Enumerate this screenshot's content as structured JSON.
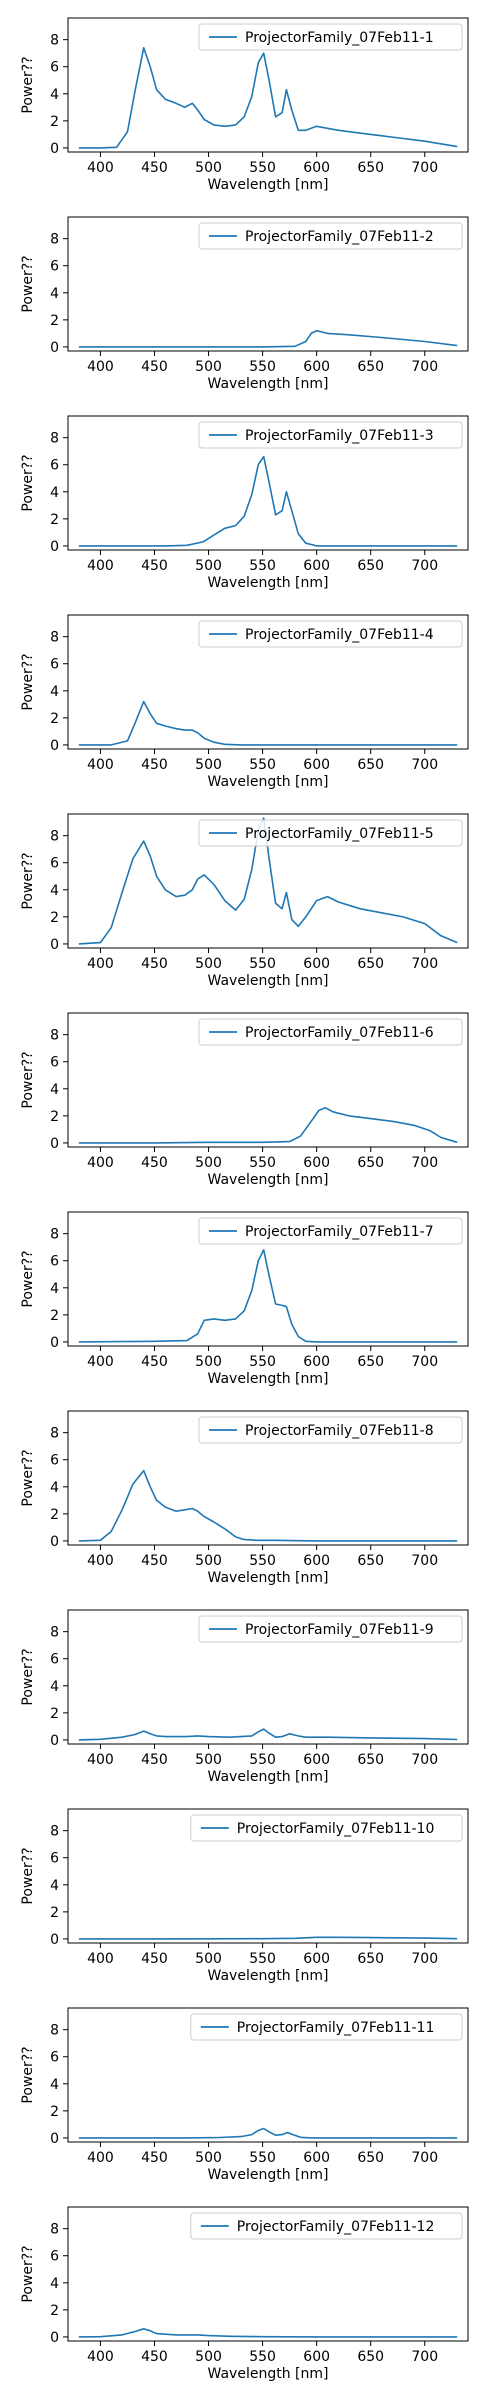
{
  "chart_data": [
    {
      "type": "line",
      "xlabel": "Wavelength [nm]",
      "ylabel": "Power??",
      "xticks": [
        400,
        450,
        500,
        550,
        600,
        650,
        700
      ],
      "yticks": [
        0,
        2,
        4,
        6,
        8
      ],
      "xlim": [
        370,
        740
      ],
      "ylim": [
        -0.3,
        9.6
      ],
      "legend_position": "top-right",
      "color": "#1f77b4",
      "series": [
        {
          "name": "ProjectorFamily_07Feb11-1",
          "x": [
            380,
            400,
            415,
            425,
            432,
            440,
            446,
            452,
            460,
            470,
            478,
            485,
            490,
            496,
            505,
            515,
            525,
            533,
            540,
            546,
            551,
            556,
            562,
            568,
            572,
            577,
            583,
            590,
            600,
            620,
            650,
            680,
            700,
            730
          ],
          "y": [
            0,
            0,
            0.05,
            1.2,
            4.2,
            7.4,
            6.0,
            4.3,
            3.6,
            3.3,
            3.0,
            3.3,
            2.8,
            2.1,
            1.7,
            1.6,
            1.7,
            2.3,
            3.8,
            6.3,
            7.0,
            5.0,
            2.3,
            2.6,
            4.3,
            2.8,
            1.3,
            1.3,
            1.6,
            1.3,
            1.0,
            0.7,
            0.5,
            0.1
          ]
        }
      ]
    },
    {
      "type": "line",
      "xlabel": "Wavelength [nm]",
      "ylabel": "Power??",
      "xticks": [
        400,
        450,
        500,
        550,
        600,
        650,
        700
      ],
      "yticks": [
        0,
        2,
        4,
        6,
        8
      ],
      "xlim": [
        370,
        740
      ],
      "ylim": [
        -0.3,
        9.6
      ],
      "legend_position": "top-right",
      "color": "#1f77b4",
      "series": [
        {
          "name": "ProjectorFamily_07Feb11-2",
          "x": [
            380,
            450,
            550,
            580,
            590,
            595,
            600,
            610,
            630,
            660,
            700,
            730
          ],
          "y": [
            0,
            0,
            0,
            0.05,
            0.4,
            1.0,
            1.2,
            1.0,
            0.9,
            0.7,
            0.4,
            0.1
          ]
        }
      ]
    },
    {
      "type": "line",
      "xlabel": "Wavelength [nm]",
      "ylabel": "Power??",
      "xticks": [
        400,
        450,
        500,
        550,
        600,
        650,
        700
      ],
      "yticks": [
        0,
        2,
        4,
        6,
        8
      ],
      "xlim": [
        370,
        740
      ],
      "ylim": [
        -0.3,
        9.6
      ],
      "legend_position": "top-right",
      "color": "#1f77b4",
      "series": [
        {
          "name": "ProjectorFamily_07Feb11-3",
          "x": [
            380,
            460,
            480,
            495,
            505,
            515,
            525,
            533,
            540,
            546,
            551,
            556,
            562,
            568,
            572,
            577,
            583,
            590,
            600,
            620,
            730
          ],
          "y": [
            0,
            0,
            0.05,
            0.3,
            0.8,
            1.3,
            1.5,
            2.2,
            3.8,
            6.0,
            6.6,
            4.7,
            2.3,
            2.6,
            4.0,
            2.6,
            0.9,
            0.2,
            0,
            0,
            0
          ]
        }
      ]
    },
    {
      "type": "line",
      "xlabel": "Wavelength [nm]",
      "ylabel": "Power??",
      "xticks": [
        400,
        450,
        500,
        550,
        600,
        650,
        700
      ],
      "yticks": [
        0,
        2,
        4,
        6,
        8
      ],
      "xlim": [
        370,
        740
      ],
      "ylim": [
        -0.3,
        9.6
      ],
      "legend_position": "top-right",
      "color": "#1f77b4",
      "series": [
        {
          "name": "ProjectorFamily_07Feb11-4",
          "x": [
            380,
            410,
            425,
            432,
            440,
            446,
            452,
            460,
            470,
            478,
            485,
            490,
            496,
            505,
            515,
            530,
            600,
            730
          ],
          "y": [
            0,
            0,
            0.3,
            1.6,
            3.2,
            2.3,
            1.6,
            1.4,
            1.2,
            1.1,
            1.1,
            0.9,
            0.5,
            0.2,
            0.05,
            0,
            0,
            0
          ]
        }
      ]
    },
    {
      "type": "line",
      "xlabel": "Wavelength [nm]",
      "ylabel": "Power??",
      "xticks": [
        400,
        450,
        500,
        550,
        600,
        650,
        700
      ],
      "yticks": [
        0,
        2,
        4,
        6,
        8
      ],
      "xlim": [
        370,
        740
      ],
      "ylim": [
        -0.3,
        9.6
      ],
      "legend_position": "top-right",
      "color": "#1f77b4",
      "series": [
        {
          "name": "ProjectorFamily_07Feb11-5",
          "x": [
            380,
            400,
            410,
            420,
            430,
            440,
            446,
            452,
            460,
            470,
            478,
            485,
            490,
            496,
            505,
            515,
            525,
            533,
            540,
            546,
            551,
            556,
            562,
            568,
            572,
            577,
            583,
            590,
            600,
            610,
            620,
            640,
            660,
            680,
            700,
            715,
            730
          ],
          "y": [
            0,
            0.1,
            1.2,
            3.8,
            6.3,
            7.6,
            6.5,
            5.0,
            4.0,
            3.5,
            3.6,
            4.0,
            4.8,
            5.1,
            4.4,
            3.2,
            2.5,
            3.3,
            5.5,
            8.4,
            9.3,
            6.3,
            3.0,
            2.6,
            3.8,
            1.8,
            1.3,
            2.0,
            3.2,
            3.5,
            3.1,
            2.6,
            2.3,
            2.0,
            1.5,
            0.6,
            0.1
          ]
        }
      ]
    },
    {
      "type": "line",
      "xlabel": "Wavelength [nm]",
      "ylabel": "Power??",
      "xticks": [
        400,
        450,
        500,
        550,
        600,
        650,
        700
      ],
      "yticks": [
        0,
        2,
        4,
        6,
        8
      ],
      "xlim": [
        370,
        740
      ],
      "ylim": [
        -0.3,
        9.6
      ],
      "legend_position": "top-right",
      "color": "#1f77b4",
      "series": [
        {
          "name": "ProjectorFamily_07Feb11-6",
          "x": [
            380,
            450,
            500,
            550,
            575,
            585,
            595,
            602,
            608,
            615,
            630,
            650,
            670,
            690,
            705,
            715,
            730
          ],
          "y": [
            0,
            0,
            0.05,
            0.05,
            0.1,
            0.5,
            1.6,
            2.4,
            2.6,
            2.3,
            2.0,
            1.8,
            1.6,
            1.3,
            0.9,
            0.4,
            0.05
          ]
        }
      ]
    },
    {
      "type": "line",
      "xlabel": "Wavelength [nm]",
      "ylabel": "Power??",
      "xticks": [
        400,
        450,
        500,
        550,
        600,
        650,
        700
      ],
      "yticks": [
        0,
        2,
        4,
        6,
        8
      ],
      "xlim": [
        370,
        740
      ],
      "ylim": [
        -0.3,
        9.6
      ],
      "legend_position": "top-right",
      "color": "#1f77b4",
      "series": [
        {
          "name": "ProjectorFamily_07Feb11-7",
          "x": [
            380,
            450,
            480,
            490,
            496,
            505,
            515,
            525,
            533,
            540,
            546,
            551,
            556,
            562,
            568,
            572,
            577,
            583,
            590,
            600,
            730
          ],
          "y": [
            0,
            0.05,
            0.1,
            0.6,
            1.6,
            1.7,
            1.6,
            1.7,
            2.3,
            3.8,
            6.0,
            6.8,
            4.9,
            2.8,
            2.7,
            2.6,
            1.3,
            0.4,
            0.05,
            0,
            0
          ]
        }
      ]
    },
    {
      "type": "line",
      "xlabel": "Wavelength [nm]",
      "ylabel": "Power??",
      "xticks": [
        400,
        450,
        500,
        550,
        600,
        650,
        700
      ],
      "yticks": [
        0,
        2,
        4,
        6,
        8
      ],
      "xlim": [
        370,
        740
      ],
      "ylim": [
        -0.3,
        9.6
      ],
      "legend_position": "top-right",
      "color": "#1f77b4",
      "series": [
        {
          "name": "ProjectorFamily_07Feb11-8",
          "x": [
            380,
            400,
            410,
            420,
            430,
            440,
            446,
            452,
            460,
            470,
            478,
            485,
            490,
            496,
            505,
            515,
            525,
            533,
            545,
            560,
            600,
            730
          ],
          "y": [
            0,
            0.05,
            0.7,
            2.3,
            4.2,
            5.2,
            4.0,
            3.0,
            2.5,
            2.2,
            2.3,
            2.4,
            2.2,
            1.8,
            1.4,
            0.9,
            0.3,
            0.1,
            0.05,
            0.05,
            0,
            0
          ]
        }
      ]
    },
    {
      "type": "line",
      "xlabel": "Wavelength [nm]",
      "ylabel": "Power??",
      "xticks": [
        400,
        450,
        500,
        550,
        600,
        650,
        700
      ],
      "yticks": [
        0,
        2,
        4,
        6,
        8
      ],
      "xlim": [
        370,
        740
      ],
      "ylim": [
        -0.3,
        9.6
      ],
      "legend_position": "top-right",
      "color": "#1f77b4",
      "series": [
        {
          "name": "ProjectorFamily_07Feb11-9",
          "x": [
            380,
            400,
            420,
            432,
            440,
            446,
            452,
            460,
            480,
            490,
            500,
            520,
            540,
            546,
            551,
            556,
            562,
            568,
            575,
            583,
            590,
            610,
            650,
            700,
            730
          ],
          "y": [
            0,
            0.05,
            0.2,
            0.4,
            0.65,
            0.45,
            0.3,
            0.25,
            0.25,
            0.3,
            0.25,
            0.2,
            0.3,
            0.6,
            0.8,
            0.5,
            0.2,
            0.25,
            0.45,
            0.3,
            0.2,
            0.2,
            0.15,
            0.1,
            0.03
          ]
        }
      ]
    },
    {
      "type": "line",
      "xlabel": "Wavelength [nm]",
      "ylabel": "Power??",
      "xticks": [
        400,
        450,
        500,
        550,
        600,
        650,
        700
      ],
      "yticks": [
        0,
        2,
        4,
        6,
        8
      ],
      "xlim": [
        370,
        740
      ],
      "ylim": [
        -0.3,
        9.6
      ],
      "legend_position": "top-right",
      "color": "#1f77b4",
      "series": [
        {
          "name": "ProjectorFamily_07Feb11-10",
          "x": [
            380,
            450,
            550,
            580,
            600,
            620,
            650,
            700,
            730
          ],
          "y": [
            0,
            0,
            0.02,
            0.05,
            0.12,
            0.12,
            0.1,
            0.06,
            0.02
          ]
        }
      ]
    },
    {
      "type": "line",
      "xlabel": "Wavelength [nm]",
      "ylabel": "Power??",
      "xticks": [
        400,
        450,
        500,
        550,
        600,
        650,
        700
      ],
      "yticks": [
        0,
        2,
        4,
        6,
        8
      ],
      "xlim": [
        370,
        740
      ],
      "ylim": [
        -0.3,
        9.6
      ],
      "legend_position": "top-right",
      "color": "#1f77b4",
      "series": [
        {
          "name": "ProjectorFamily_07Feb11-11",
          "x": [
            380,
            480,
            510,
            530,
            540,
            546,
            551,
            556,
            562,
            568,
            573,
            578,
            585,
            595,
            620,
            730
          ],
          "y": [
            0,
            0,
            0.03,
            0.1,
            0.25,
            0.55,
            0.7,
            0.45,
            0.2,
            0.25,
            0.4,
            0.25,
            0.05,
            0,
            0,
            0
          ]
        }
      ]
    },
    {
      "type": "line",
      "xlabel": "Wavelength [nm]",
      "ylabel": "Power??",
      "xticks": [
        400,
        450,
        500,
        550,
        600,
        650,
        700
      ],
      "yticks": [
        0,
        2,
        4,
        6,
        8
      ],
      "xlim": [
        370,
        740
      ],
      "ylim": [
        -0.3,
        9.6
      ],
      "legend_position": "top-right",
      "color": "#1f77b4",
      "series": [
        {
          "name": "ProjectorFamily_07Feb11-12",
          "x": [
            380,
            400,
            420,
            432,
            440,
            446,
            452,
            460,
            470,
            480,
            490,
            500,
            520,
            550,
            600,
            730
          ],
          "y": [
            0,
            0.02,
            0.15,
            0.4,
            0.6,
            0.45,
            0.25,
            0.2,
            0.15,
            0.15,
            0.15,
            0.1,
            0.05,
            0.02,
            0,
            0
          ]
        }
      ]
    }
  ]
}
